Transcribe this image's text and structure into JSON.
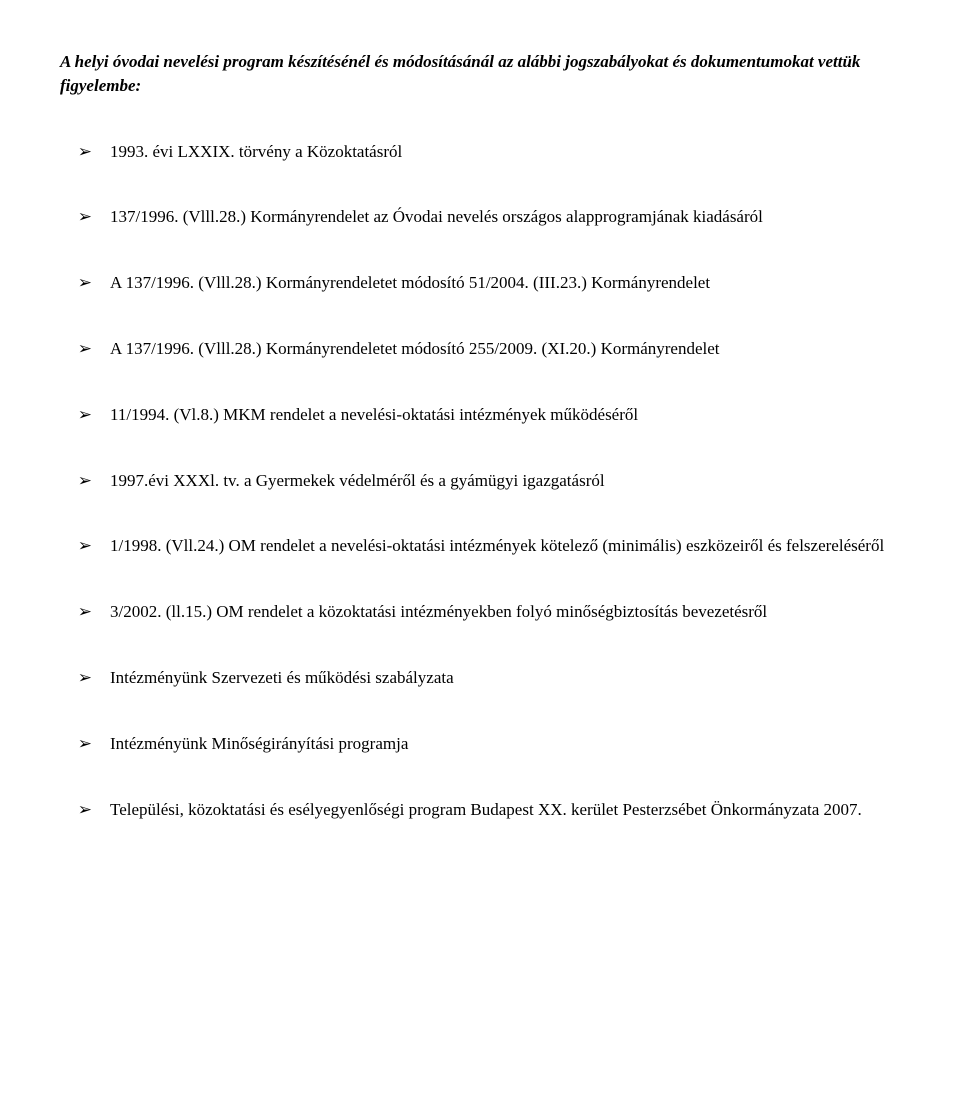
{
  "intro": "A helyi óvodai nevelési program készítésénél és módosításánál az alábbi jogszabályokat és dokumentumokat vettük figyelembe:",
  "items": [
    "1993. évi LXXIX. törvény a Közoktatásról",
    "137/1996. (Vlll.28.) Kormányrendelet az Óvodai nevelés országos alapprogramjának kiadásáról",
    "A 137/1996. (Vlll.28.) Kormányrendeletet módosító 51/2004. (III.23.) Kormányrendelet",
    "A 137/1996. (Vlll.28.) Kormányrendeletet módosító 255/2009. (XI.20.) Kormányrendelet",
    "11/1994. (Vl.8.) MKM rendelet a nevelési-oktatási intézmények működéséről",
    "1997.évi XXXl. tv. a Gyermekek védelméről és a gyámügyi igazgatásról",
    "1/1998. (Vll.24.) OM rendelet a nevelési-oktatási intézmények kötelező (minimális) eszközeiről és felszereléséről",
    "3/2002. (ll.15.) OM rendelet a közoktatási intézményekben folyó minőségbiztosítás bevezetésről",
    "Intézményünk Szervezeti és működési szabályzata",
    "Intézményünk Minőségirányítási programja",
    "Települési, közoktatási és esélyegyenlőségi program Budapest XX. kerület Pesterzsébet Önkormányzata 2007."
  ],
  "bullet": "➢"
}
